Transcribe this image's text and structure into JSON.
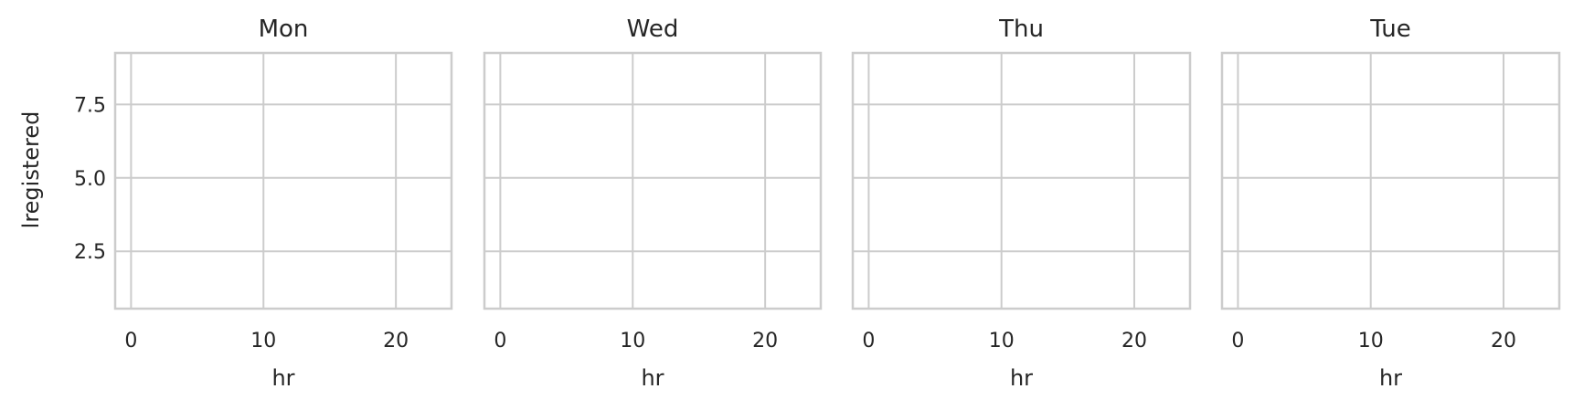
{
  "chart_data": {
    "type": "scatter",
    "facet_variable": "",
    "facets": [
      {
        "title": "Mon",
        "points": []
      },
      {
        "title": "Wed",
        "points": []
      },
      {
        "title": "Thu",
        "points": []
      },
      {
        "title": "Tue",
        "points": []
      }
    ],
    "xlabel": "hr",
    "ylabel": "lregistered",
    "xlim": [
      -1.2,
      24.2
    ],
    "ylim": [
      0.55,
      9.25
    ],
    "xticks": [
      0,
      10,
      20
    ],
    "xtick_labels": [
      "0",
      "10",
      "20"
    ],
    "yticks": [
      2.5,
      5.0,
      7.5
    ],
    "ytick_labels": [
      "2.5",
      "5.0",
      "7.5"
    ],
    "grid": true,
    "sharey": true,
    "colors": {
      "grid": "#cccccc",
      "frame": "#cccccc",
      "text": "#262626",
      "background": "#ffffff"
    }
  }
}
